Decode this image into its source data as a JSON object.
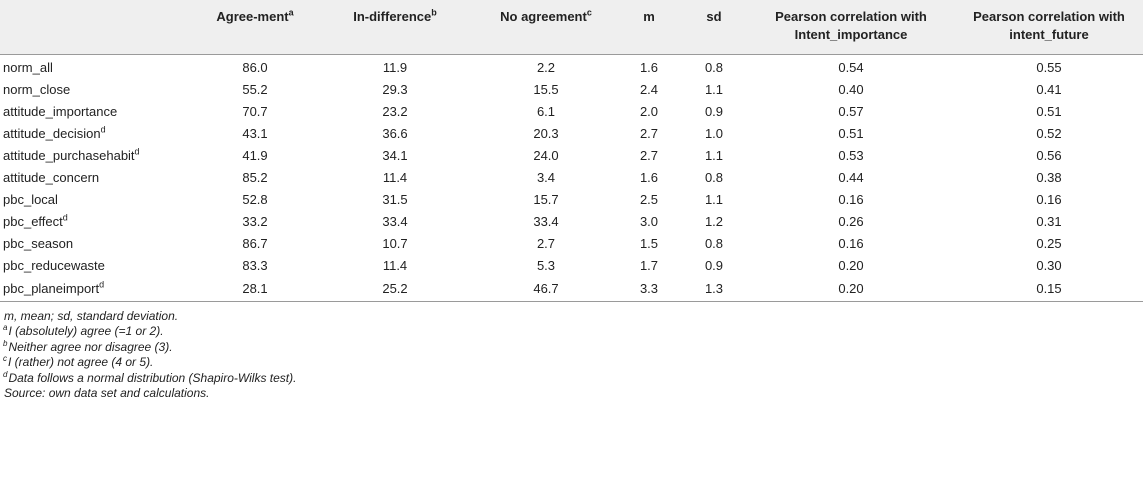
{
  "table": {
    "headers": [
      {
        "text": "",
        "sup": ""
      },
      {
        "text": "Agree-ment",
        "sup": "a"
      },
      {
        "text": "In-difference",
        "sup": "b"
      },
      {
        "text": "No agreement",
        "sup": "c"
      },
      {
        "text": "m",
        "sup": ""
      },
      {
        "text": "sd",
        "sup": ""
      },
      {
        "text": "Pearson correlation with Intent_importance",
        "sup": ""
      },
      {
        "text": "Pearson correlation with intent_future",
        "sup": ""
      }
    ],
    "rows": [
      {
        "label": "norm_all",
        "sup": "",
        "cells": [
          "86.0",
          "11.9",
          "2.2",
          "1.6",
          "0.8",
          "0.54",
          "0.55"
        ]
      },
      {
        "label": "norm_close",
        "sup": "",
        "cells": [
          "55.2",
          "29.3",
          "15.5",
          "2.4",
          "1.1",
          "0.40",
          "0.41"
        ]
      },
      {
        "label": "attitude_importance",
        "sup": "",
        "cells": [
          "70.7",
          "23.2",
          "6.1",
          "2.0",
          "0.9",
          "0.57",
          "0.51"
        ]
      },
      {
        "label": "attitude_decision",
        "sup": "d",
        "cells": [
          "43.1",
          "36.6",
          "20.3",
          "2.7",
          "1.0",
          "0.51",
          "0.52"
        ]
      },
      {
        "label": "attitude_purchasehabit",
        "sup": "d",
        "cells": [
          "41.9",
          "34.1",
          "24.0",
          "2.7",
          "1.1",
          "0.53",
          "0.56"
        ]
      },
      {
        "label": "attitude_concern",
        "sup": "",
        "cells": [
          "85.2",
          "11.4",
          "3.4",
          "1.6",
          "0.8",
          "0.44",
          "0.38"
        ]
      },
      {
        "label": "pbc_local",
        "sup": "",
        "cells": [
          "52.8",
          "31.5",
          "15.7",
          "2.5",
          "1.1",
          "0.16",
          "0.16"
        ]
      },
      {
        "label": "pbc_effect",
        "sup": "d",
        "cells": [
          "33.2",
          "33.4",
          "33.4",
          "3.0",
          "1.2",
          "0.26",
          "0.31"
        ]
      },
      {
        "label": "pbc_season",
        "sup": "",
        "cells": [
          "86.7",
          "10.7",
          "2.7",
          "1.5",
          "0.8",
          "0.16",
          "0.25"
        ]
      },
      {
        "label": "pbc_reducewaste",
        "sup": "",
        "cells": [
          "83.3",
          "11.4",
          "5.3",
          "1.7",
          "0.9",
          "0.20",
          "0.30"
        ]
      },
      {
        "label": "pbc_planeimport",
        "sup": "d",
        "cells": [
          "28.1",
          "25.2",
          "46.7",
          "3.3",
          "1.3",
          "0.20",
          "0.15"
        ]
      }
    ]
  },
  "notes": [
    {
      "sup": "",
      "text": "m, mean; sd, standard deviation."
    },
    {
      "sup": "a",
      "text": "I (absolutely) agree (=1 or 2)."
    },
    {
      "sup": "b",
      "text": "Neither agree nor disagree (3)."
    },
    {
      "sup": "c",
      "text": "I (rather) not agree (4 or 5)."
    },
    {
      "sup": "d",
      "text": "Data follows a normal distribution (Shapiro-Wilks test)."
    },
    {
      "sup": "",
      "text": "Source: own data set and calculations."
    }
  ]
}
